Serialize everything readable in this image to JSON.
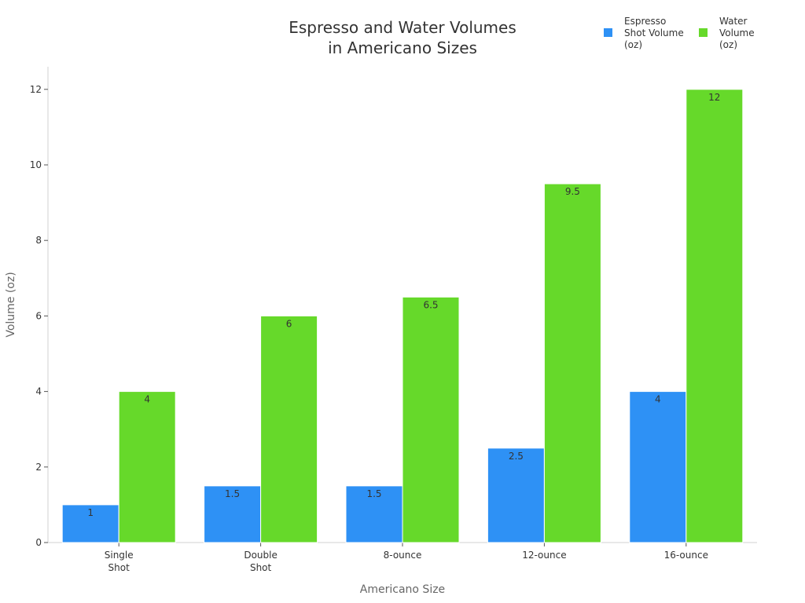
{
  "chart_data": {
    "type": "bar",
    "title_lines": [
      "Espresso and Water Volumes",
      "in Americano Sizes"
    ],
    "xlabel": "Americano Size",
    "ylabel": "Volume (oz)",
    "categories": [
      [
        "Single",
        "Shot"
      ],
      [
        "Double",
        "Shot"
      ],
      [
        "8-ounce"
      ],
      [
        "12-ounce"
      ],
      [
        "16-ounce"
      ]
    ],
    "series": [
      {
        "name_lines": [
          "Espresso",
          "Shot Volume",
          "(oz)"
        ],
        "color": "#2e91f5",
        "values": [
          1,
          1.5,
          1.5,
          2.5,
          4
        ],
        "labels": [
          "1",
          "1.5",
          "1.5",
          "2.5",
          "4"
        ]
      },
      {
        "name_lines": [
          "Water",
          "Volume",
          "(oz)"
        ],
        "color": "#66d92a",
        "values": [
          4,
          6,
          6.5,
          9.5,
          12
        ],
        "labels": [
          "4",
          "6",
          "6.5",
          "9.5",
          "12"
        ]
      }
    ],
    "ylim": [
      0,
      12.6
    ],
    "yticks": [
      0,
      2,
      4,
      6,
      8,
      10,
      12
    ],
    "grid": false,
    "legend_position": "top-right"
  }
}
